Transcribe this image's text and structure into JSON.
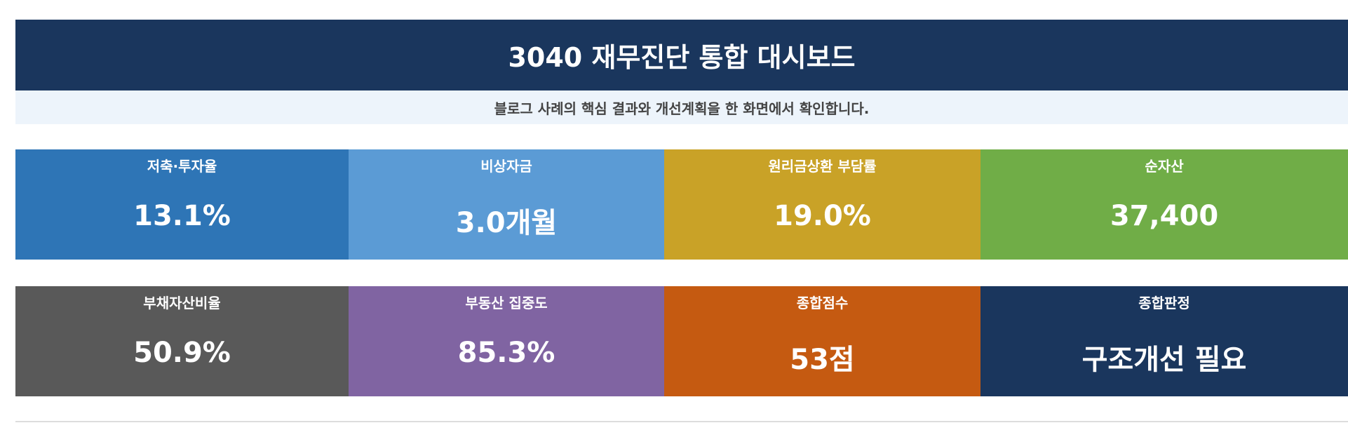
{
  "header": {
    "title": "3040 재무진단 통합 대시보드",
    "subtitle": "블로그 사례의 핵심 결과와 개선계획을 한 화면에서 확인합니다."
  },
  "cards": [
    [
      {
        "label": "저축·투자율",
        "value": "13.1%",
        "color": "#2e75b6"
      },
      {
        "label": "비상자금",
        "value": "3.0개월",
        "color": "#5b9bd5"
      },
      {
        "label": "원리금상환 부담률",
        "value": "19.0%",
        "color": "#c9a227"
      },
      {
        "label": "순자산",
        "value": "37,400",
        "color": "#70ad47"
      }
    ],
    [
      {
        "label": "부채자산비율",
        "value": "50.9%",
        "color": "#595959"
      },
      {
        "label": "부동산 집중도",
        "value": "85.3%",
        "color": "#8064a2"
      },
      {
        "label": "종합점수",
        "value": "53점",
        "color": "#c55a11"
      },
      {
        "label": "종합판정",
        "value": "구조개선 필요",
        "color": "#1a365d"
      }
    ]
  ]
}
